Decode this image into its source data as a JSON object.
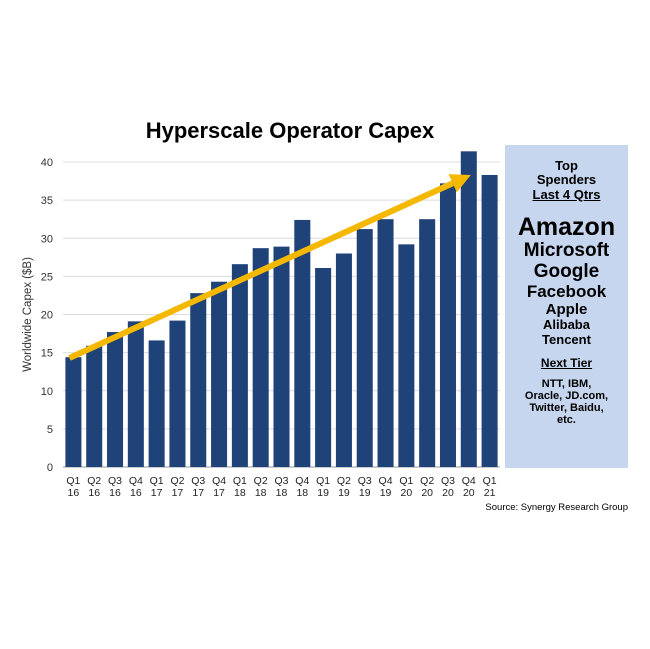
{
  "chart_data": {
    "type": "bar",
    "title": "Hyperscale Operator Capex",
    "ylabel": "Worldwide Capex ($B)",
    "xlabel": "",
    "ylim": [
      0,
      40
    ],
    "yticks": [
      0,
      5,
      10,
      15,
      20,
      25,
      30,
      35,
      40
    ],
    "grid": true,
    "categories": [
      [
        "Q1",
        "16"
      ],
      [
        "Q2",
        "16"
      ],
      [
        "Q3",
        "16"
      ],
      [
        "Q4",
        "16"
      ],
      [
        "Q1",
        "17"
      ],
      [
        "Q2",
        "17"
      ],
      [
        "Q3",
        "17"
      ],
      [
        "Q4",
        "17"
      ],
      [
        "Q1",
        "18"
      ],
      [
        "Q2",
        "18"
      ],
      [
        "Q3",
        "18"
      ],
      [
        "Q4",
        "18"
      ],
      [
        "Q1",
        "19"
      ],
      [
        "Q2",
        "19"
      ],
      [
        "Q3",
        "19"
      ],
      [
        "Q4",
        "19"
      ],
      [
        "Q1",
        "20"
      ],
      [
        "Q2",
        "20"
      ],
      [
        "Q3",
        "20"
      ],
      [
        "Q4",
        "20"
      ],
      [
        "Q1",
        "21"
      ]
    ],
    "values": [
      14.4,
      15.9,
      17.7,
      19.1,
      16.6,
      19.2,
      22.8,
      24.3,
      26.6,
      28.7,
      28.9,
      32.4,
      26.1,
      28.0,
      31.2,
      32.5,
      29.2,
      32.5,
      37.2,
      41.4,
      38.3
    ],
    "colors": {
      "bar": "#1f4278",
      "trend_arrow": "#f5b800",
      "panel": "#c6d6ee"
    },
    "annotation": "trend arrow"
  },
  "panel": {
    "heading1": "Top",
    "heading2": "Spenders",
    "heading3": "Last 4 Qtrs",
    "top": [
      "Amazon",
      "Microsoft",
      "Google",
      "Facebook",
      "Apple",
      "Alibaba",
      "Tencent"
    ],
    "next_heading": "Next Tier",
    "next_lines": [
      "NTT, IBM,",
      "Oracle, JD.com,",
      "Twitter, Baidu,",
      "etc."
    ]
  },
  "source": "Source: Synergy Research Group"
}
